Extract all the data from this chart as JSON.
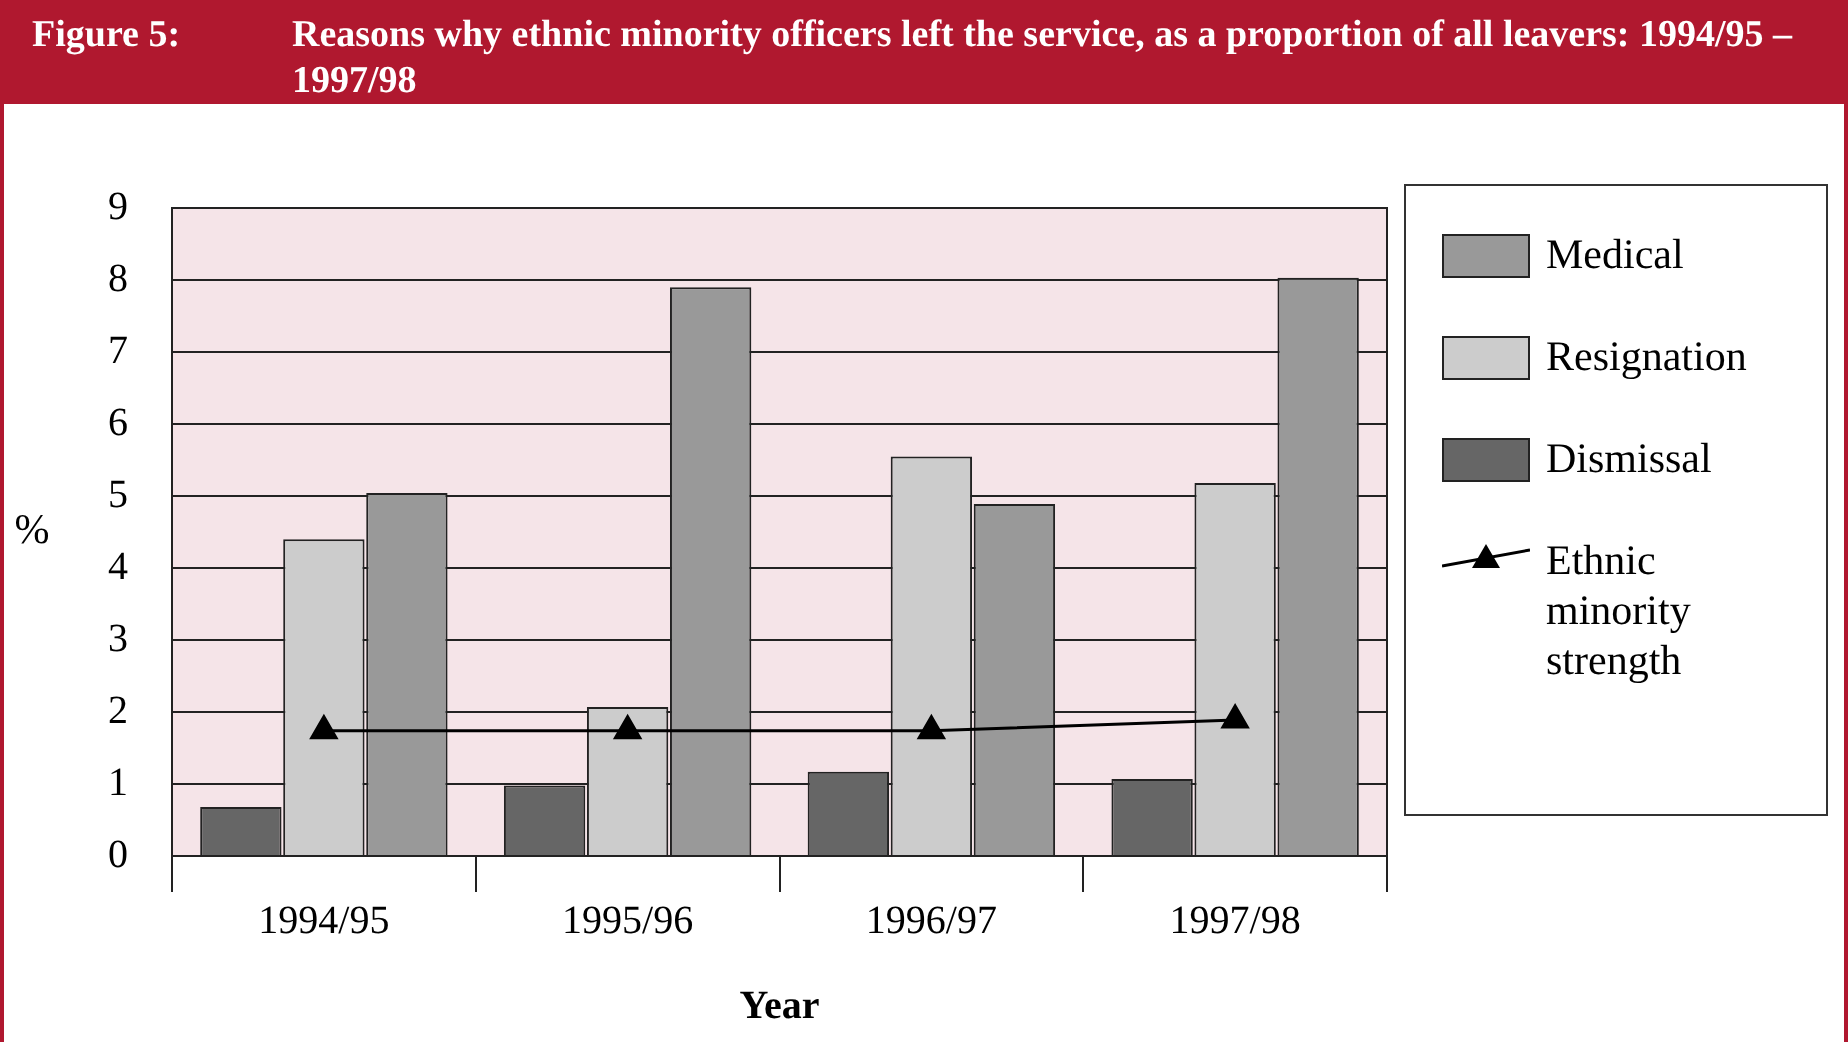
{
  "chart_data": {
    "type": "bar",
    "title": "Figure 5:",
    "subtitle": "Reasons why ethnic minority officers left the service, as a proportion of all leavers: 1994/95 – 1997/98",
    "xlabel": "Year",
    "ylabel": "%",
    "categories": [
      "1994/95",
      "1995/96",
      "1996/97",
      "1997/98"
    ],
    "series": [
      {
        "name": "Dismissal",
        "color": "#666666",
        "values": [
          0.68,
          0.98,
          1.17,
          1.07
        ]
      },
      {
        "name": "Resignation",
        "color": "#cccccc",
        "values": [
          4.4,
          2.07,
          5.55,
          5.18
        ]
      },
      {
        "name": "Medical",
        "color": "#999999",
        "values": [
          5.04,
          7.9,
          4.89,
          8.03
        ]
      },
      {
        "name": "Ethnic minority strength",
        "type": "line",
        "color": "#000000",
        "marker": "triangle",
        "values": [
          1.74,
          1.74,
          1.74,
          1.89
        ]
      }
    ],
    "ylim": [
      0,
      9
    ],
    "yticks": [
      0,
      1,
      2,
      3,
      4,
      5,
      6,
      7,
      8,
      9
    ],
    "grid": "y",
    "legend": "right"
  }
}
